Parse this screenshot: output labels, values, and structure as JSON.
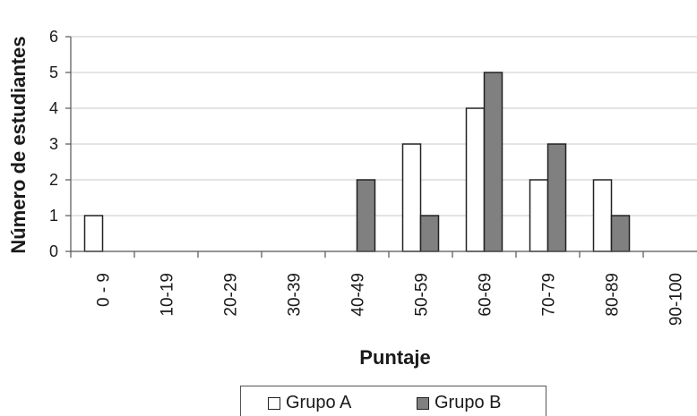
{
  "chart_data": {
    "type": "bar",
    "title": "",
    "xlabel": "Puntaje",
    "ylabel": "Número de estudiantes",
    "ylim": [
      0,
      6
    ],
    "yticks": [
      "0",
      "1",
      "2",
      "3",
      "4",
      "5",
      "6"
    ],
    "categories": [
      "0 - 9",
      "10-19",
      "20-29",
      "30-39",
      "40-49",
      "50-59",
      "60-69",
      "70-79",
      "80-89",
      "90-100"
    ],
    "series": [
      {
        "name": "Grupo A",
        "color": "#ffffff",
        "values": [
          1,
          0,
          0,
          0,
          0,
          3,
          4,
          2,
          2,
          0
        ]
      },
      {
        "name": "Grupo B",
        "color": "#808080",
        "values": [
          0,
          0,
          0,
          0,
          2,
          1,
          5,
          3,
          1,
          0
        ]
      }
    ],
    "grid": true,
    "legend_position": "bottom"
  }
}
